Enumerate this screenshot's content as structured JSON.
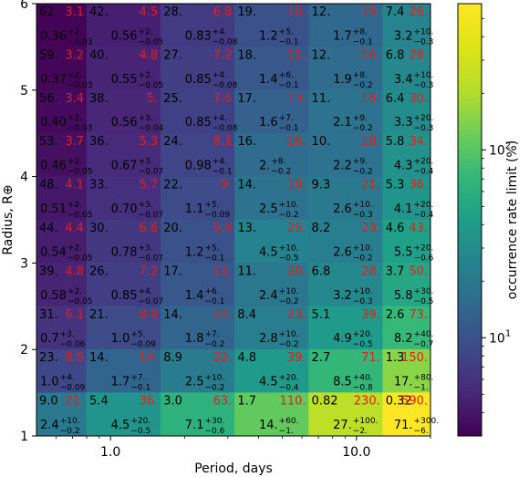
{
  "chart_data": {
    "type": "heatmap",
    "xlabel": "Period, days",
    "ylabel": "Radius, R⊕",
    "x_scale": "log",
    "x_tick_labels": [
      "1.0",
      "10.0"
    ],
    "x_tick_values": [
      1.0,
      10.0
    ],
    "x_range": [
      0.5,
      20.0
    ],
    "y_range": [
      1,
      6
    ],
    "y_tick_labels": [
      "1",
      "2",
      "3",
      "4",
      "5",
      "6"
    ],
    "colorbar": {
      "label": "occurrence rate limit (%)",
      "scale": "log",
      "tick_labels": [
        "10^1",
        "10^2"
      ],
      "tick_values": [
        10,
        100
      ],
      "range": [
        3,
        600
      ]
    },
    "period_bin_edges": [
      0.5,
      0.8,
      1.6,
      3.2,
      6.4,
      12.8,
      20.0
    ],
    "radius_bin_edges": [
      1,
      1.5,
      2,
      2.5,
      3,
      3.5,
      4,
      4.5,
      5,
      5.5,
      6
    ],
    "rows": [
      {
        "radius_bin": [
          5.5,
          6
        ],
        "cells": [
          {
            "n": "62.",
            "limit": "3.1",
            "rate": "0.36",
            "err_plus": "+2.",
            "err_minus": "−0.03"
          },
          {
            "n": "42.",
            "limit": "4.5",
            "rate": "0.56",
            "err_plus": "+2.",
            "err_minus": "−0.05"
          },
          {
            "n": "28.",
            "limit": "6.8",
            "rate": "0.83",
            "err_plus": "+4.",
            "err_minus": "−0.08"
          },
          {
            "n": "19.",
            "limit": "10.",
            "rate": "1.2",
            "err_plus": "+5.",
            "err_minus": "−0.1"
          },
          {
            "n": "12.",
            "limit": "15.",
            "rate": "1.7",
            "err_plus": "+8.",
            "err_minus": "−0.1"
          },
          {
            "n": "7.4",
            "limit": "26.",
            "rate": "3.2",
            "err_plus": "+10.",
            "err_minus": "−0.3"
          }
        ]
      },
      {
        "radius_bin": [
          5,
          5.5
        ],
        "cells": [
          {
            "n": "59.",
            "limit": "3.2",
            "rate": "0.37",
            "err_plus": "+2.",
            "err_minus": "−0.03"
          },
          {
            "n": "40.",
            "limit": "4.8",
            "rate": "0.55",
            "err_plus": "+2.",
            "err_minus": "−0.05"
          },
          {
            "n": "27.",
            "limit": "7.2",
            "rate": "0.85",
            "err_plus": "+4.",
            "err_minus": "−0.08"
          },
          {
            "n": "18.",
            "limit": "11.",
            "rate": "1.4",
            "err_plus": "+6.",
            "err_minus": "−0.1"
          },
          {
            "n": "12.",
            "limit": "16.",
            "rate": "1.9",
            "err_plus": "+8.",
            "err_minus": "−0.2"
          },
          {
            "n": "6.8",
            "limit": "28.",
            "rate": "3.4",
            "err_plus": "+10.",
            "err_minus": "−0.3"
          }
        ]
      },
      {
        "radius_bin": [
          4.5,
          5
        ],
        "cells": [
          {
            "n": "56.",
            "limit": "3.4",
            "rate": "0.40",
            "err_plus": "+2.",
            "err_minus": "−0.03"
          },
          {
            "n": "38.",
            "limit": "5.",
            "rate": "0.56",
            "err_plus": "+3.",
            "err_minus": "−0.04"
          },
          {
            "n": "25.",
            "limit": "7.6",
            "rate": "0.85",
            "err_plus": "+4.",
            "err_minus": "−0.08"
          },
          {
            "n": "17.",
            "limit": "13.",
            "rate": "1.6",
            "err_plus": "+7.",
            "err_minus": "−0.1"
          },
          {
            "n": "11.",
            "limit": "18.",
            "rate": "2.1",
            "err_plus": "+9.",
            "err_minus": "−0.2"
          },
          {
            "n": "6.4",
            "limit": "30.",
            "rate": "3.3",
            "err_plus": "+20.",
            "err_minus": "−0.3"
          }
        ]
      },
      {
        "radius_bin": [
          4,
          4.5
        ],
        "cells": [
          {
            "n": "53.",
            "limit": "3.7",
            "rate": "0.46",
            "err_plus": "+2.",
            "err_minus": "−0.05"
          },
          {
            "n": "36.",
            "limit": "5.3",
            "rate": "0.67",
            "err_plus": "+3.",
            "err_minus": "−0.07"
          },
          {
            "n": "24.",
            "limit": "8.1",
            "rate": "0.98",
            "err_plus": "+4.",
            "err_minus": "−0.1"
          },
          {
            "n": "16.",
            "limit": "16.",
            "rate": "2.",
            "err_plus": "+8.",
            "err_minus": "−0.2"
          },
          {
            "n": "10.",
            "limit": "18.",
            "rate": "2.2",
            "err_plus": "+9.",
            "err_minus": "−0.2"
          },
          {
            "n": "5.8",
            "limit": "34.",
            "rate": "4.3",
            "err_plus": "+20.",
            "err_minus": "−0.4"
          }
        ]
      },
      {
        "radius_bin": [
          3.5,
          4
        ],
        "cells": [
          {
            "n": "48.",
            "limit": "4.1",
            "rate": "0.51",
            "err_plus": "+2.",
            "err_minus": "−0.05"
          },
          {
            "n": "33.",
            "limit": "5.7",
            "rate": "0.70",
            "err_plus": "+3.",
            "err_minus": "−0.07"
          },
          {
            "n": "22.",
            "limit": "9.",
            "rate": "1.1",
            "err_plus": "+5.",
            "err_minus": "−0.09"
          },
          {
            "n": "14.",
            "limit": "18.",
            "rate": "2.5",
            "err_plus": "+10.",
            "err_minus": "−0.2"
          },
          {
            "n": "9.3",
            "limit": "21.",
            "rate": "2.6",
            "err_plus": "+10.",
            "err_minus": "−0.3"
          },
          {
            "n": "5.3",
            "limit": "36.",
            "rate": "4.1",
            "err_plus": "+20.",
            "err_minus": "−0.4"
          }
        ]
      },
      {
        "radius_bin": [
          3,
          3.5
        ],
        "cells": [
          {
            "n": "44.",
            "limit": "4.4",
            "rate": "0.54",
            "err_plus": "+2.",
            "err_minus": "−0.05"
          },
          {
            "n": "30.",
            "limit": "6.6",
            "rate": "0.78",
            "err_plus": "+3.",
            "err_minus": "−0.07"
          },
          {
            "n": "20.",
            "limit": "9.9",
            "rate": "1.2",
            "err_plus": "+5.",
            "err_minus": "−0.1"
          },
          {
            "n": "13.",
            "limit": "25.",
            "rate": "4.5",
            "err_plus": "+10.",
            "err_minus": "−0.5"
          },
          {
            "n": "8.2",
            "limit": "23.",
            "rate": "2.6",
            "err_plus": "+10.",
            "err_minus": "−0.2"
          },
          {
            "n": "4.6",
            "limit": "43.",
            "rate": "5.5",
            "err_plus": "+20.",
            "err_minus": "−0.6"
          }
        ]
      },
      {
        "radius_bin": [
          2.5,
          3
        ],
        "cells": [
          {
            "n": "39.",
            "limit": "4.8",
            "rate": "0.58",
            "err_plus": "+2.",
            "err_minus": "−0.05"
          },
          {
            "n": "26.",
            "limit": "7.2",
            "rate": "0.85",
            "err_plus": "+4.",
            "err_minus": "−0.07"
          },
          {
            "n": "17.",
            "limit": "11.",
            "rate": "1.4",
            "err_plus": "+6.",
            "err_minus": "−0.1"
          },
          {
            "n": "11.",
            "limit": "20.",
            "rate": "2.4",
            "err_plus": "+10.",
            "err_minus": "−0.2"
          },
          {
            "n": "6.8",
            "limit": "28.",
            "rate": "3.2",
            "err_plus": "+10.",
            "err_minus": "−0.3"
          },
          {
            "n": "3.7",
            "limit": "50.",
            "rate": "5.8",
            "err_plus": "+30.",
            "err_minus": "−0.5"
          }
        ]
      },
      {
        "radius_bin": [
          2,
          2.5
        ],
        "cells": [
          {
            "n": "31.",
            "limit": "6.1",
            "rate": "0.7",
            "err_plus": "+3.",
            "err_minus": "−0.06"
          },
          {
            "n": "21.",
            "limit": "8.9",
            "rate": "1.0",
            "err_plus": "+5.",
            "err_minus": "−0.09"
          },
          {
            "n": "14.",
            "limit": "14.",
            "rate": "1.8",
            "err_plus": "+7.",
            "err_minus": "−0.2"
          },
          {
            "n": "8.4",
            "limit": "23.",
            "rate": "2.8",
            "err_plus": "+10.",
            "err_minus": "−0.2"
          },
          {
            "n": "5.1",
            "limit": "39.",
            "rate": "4.9",
            "err_plus": "+20.",
            "err_minus": "−0.5"
          },
          {
            "n": "2.6",
            "limit": "73.",
            "rate": "8.2",
            "err_plus": "+40.",
            "err_minus": "−0.7"
          }
        ]
      },
      {
        "radius_bin": [
          1.5,
          2
        ],
        "cells": [
          {
            "n": "23.",
            "limit": "8.5",
            "rate": "1.0",
            "err_plus": "+4.",
            "err_minus": "−0.09"
          },
          {
            "n": "14.",
            "limit": "14.",
            "rate": "1.7",
            "err_plus": "+7.",
            "err_minus": "−0.1"
          },
          {
            "n": "8.9",
            "limit": "22.",
            "rate": "2.5",
            "err_plus": "+10.",
            "err_minus": "−0.2"
          },
          {
            "n": "4.8",
            "limit": "39.",
            "rate": "4.5",
            "err_plus": "+20.",
            "err_minus": "−0.4"
          },
          {
            "n": "2.7",
            "limit": "71.",
            "rate": "8.5",
            "err_plus": "+40.",
            "err_minus": "−0.8"
          },
          {
            "n": "1.3",
            "limit": "150.",
            "rate": "17.",
            "err_plus": "+80.",
            "err_minus": "−1."
          }
        ]
      },
      {
        "radius_bin": [
          1,
          1.5
        ],
        "cells": [
          {
            "n": "9.0",
            "limit": "21.",
            "rate": "2.4",
            "err_plus": "+10.",
            "err_minus": "−0.2"
          },
          {
            "n": "5.4",
            "limit": "36.",
            "rate": "4.5",
            "err_plus": "+20.",
            "err_minus": "−0.5"
          },
          {
            "n": "3.0",
            "limit": "63.",
            "rate": "7.1",
            "err_plus": "+30.",
            "err_minus": "−0.6"
          },
          {
            "n": "1.7",
            "limit": "110.",
            "rate": "14.",
            "err_plus": "+60.",
            "err_minus": "−1."
          },
          {
            "n": "0.82",
            "limit": "230.",
            "rate": "27.",
            "err_plus": "+100.",
            "err_minus": "−2."
          },
          {
            "n": "0.32",
            "limit": "590.",
            "rate": "71.",
            "err_plus": "+300.",
            "err_minus": "−6."
          }
        ]
      }
    ]
  }
}
